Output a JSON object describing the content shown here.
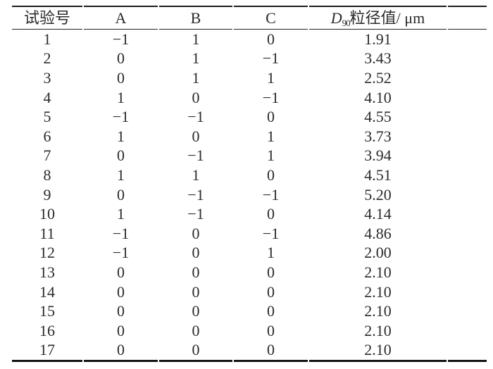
{
  "table": {
    "header": {
      "run": "试验号",
      "a": "A",
      "b": "B",
      "c": "C",
      "d90": {
        "symbol": "D",
        "subscript": "90",
        "rest": "粒径值/ μm"
      }
    },
    "rows": [
      [
        "1",
        "−1",
        "1",
        "0",
        "1.91"
      ],
      [
        "2",
        "0",
        "1",
        "−1",
        "3.43"
      ],
      [
        "3",
        "0",
        "1",
        "1",
        "2.52"
      ],
      [
        "4",
        "1",
        "0",
        "−1",
        "4.10"
      ],
      [
        "5",
        "−1",
        "−1",
        "0",
        "4.55"
      ],
      [
        "6",
        "1",
        "0",
        "1",
        "3.73"
      ],
      [
        "7",
        "0",
        "−1",
        "1",
        "3.94"
      ],
      [
        "8",
        "1",
        "1",
        "0",
        "4.51"
      ],
      [
        "9",
        "0",
        "−1",
        "−1",
        "5.20"
      ],
      [
        "10",
        "1",
        "−1",
        "0",
        "4.14"
      ],
      [
        "11",
        "−1",
        "0",
        "−1",
        "4.86"
      ],
      [
        "12",
        "−1",
        "0",
        "1",
        "2.00"
      ],
      [
        "13",
        "0",
        "0",
        "0",
        "2.10"
      ],
      [
        "14",
        "0",
        "0",
        "0",
        "2.10"
      ],
      [
        "15",
        "0",
        "0",
        "0",
        "2.10"
      ],
      [
        "16",
        "0",
        "0",
        "0",
        "2.10"
      ],
      [
        "17",
        "0",
        "0",
        "0",
        "2.10"
      ]
    ]
  },
  "colors": {
    "text": "#2b2b2b",
    "rule": "#1a1a1a",
    "background": "#ffffff"
  }
}
